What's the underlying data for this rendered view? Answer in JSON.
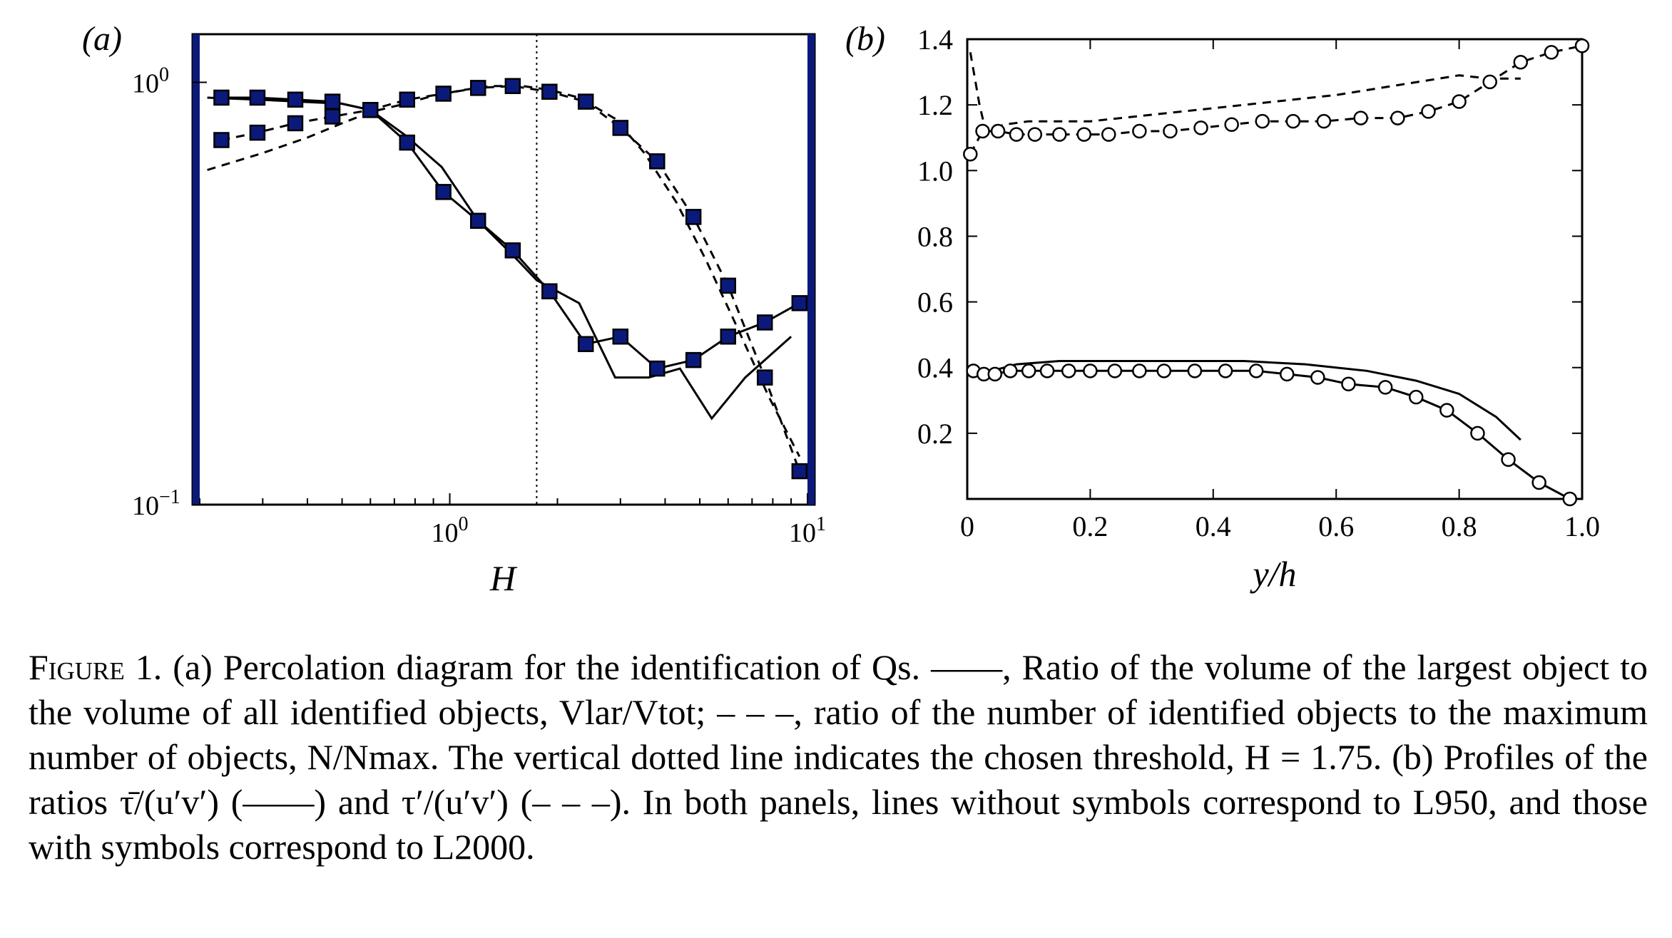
{
  "chart_data": [
    {
      "type": "line",
      "panel_label": "(a)",
      "xlabel": "H",
      "x_scale": "log",
      "y_scale": "log",
      "xlim": [
        0.2,
        10
      ],
      "ylim": [
        0.1,
        1.3
      ],
      "x_ticks": [
        {
          "value": 1,
          "base": "10",
          "exp": "0"
        },
        {
          "value": 10,
          "base": "10",
          "exp": "1"
        }
      ],
      "y_ticks": [
        {
          "value": 1,
          "base": "10",
          "exp": "0"
        },
        {
          "value": 0.1,
          "base": "10",
          "exp": "−1"
        }
      ],
      "threshold_x": 1.75,
      "series": [
        {
          "style": "solid",
          "markers": false,
          "x": [
            0.21,
            0.29,
            0.38,
            0.5,
            0.6,
            0.75,
            0.95,
            1.2,
            1.5,
            1.75,
            2.3,
            2.9,
            3.6,
            4.4,
            5.4,
            6.7,
            9.0
          ],
          "y": [
            0.92,
            0.91,
            0.9,
            0.89,
            0.86,
            0.75,
            0.63,
            0.47,
            0.39,
            0.34,
            0.3,
            0.2,
            0.2,
            0.21,
            0.16,
            0.2,
            0.25
          ]
        },
        {
          "style": "solid",
          "markers": true,
          "x": [
            0.23,
            0.29,
            0.37,
            0.47,
            0.6,
            0.76,
            0.96,
            1.2,
            1.5,
            1.9,
            2.4,
            3.0,
            3.8,
            4.8,
            6.0,
            7.6,
            9.5
          ],
          "y": [
            0.92,
            0.92,
            0.91,
            0.9,
            0.86,
            0.72,
            0.55,
            0.47,
            0.4,
            0.32,
            0.24,
            0.25,
            0.21,
            0.22,
            0.25,
            0.27,
            0.3
          ]
        },
        {
          "style": "dashed",
          "markers": false,
          "x": [
            0.21,
            0.3,
            0.4,
            0.5,
            0.6,
            0.75,
            0.9,
            1.1,
            1.3,
            1.6,
            1.9,
            2.3,
            2.9,
            3.5,
            4.3,
            5.2,
            6.4,
            7.8,
            9.5
          ],
          "y": [
            0.62,
            0.68,
            0.74,
            0.8,
            0.85,
            0.89,
            0.93,
            0.96,
            0.98,
            0.98,
            0.96,
            0.92,
            0.82,
            0.68,
            0.52,
            0.38,
            0.26,
            0.18,
            0.13
          ]
        },
        {
          "style": "dashed",
          "markers": true,
          "x": [
            0.23,
            0.29,
            0.37,
            0.47,
            0.6,
            0.76,
            0.96,
            1.2,
            1.5,
            1.9,
            2.4,
            3.0,
            3.8,
            4.8,
            6.0,
            7.6,
            9.5
          ],
          "y": [
            0.73,
            0.76,
            0.8,
            0.83,
            0.86,
            0.91,
            0.94,
            0.97,
            0.98,
            0.95,
            0.9,
            0.78,
            0.65,
            0.48,
            0.33,
            0.2,
            0.12
          ]
        }
      ]
    },
    {
      "type": "line",
      "panel_label": "(b)",
      "xlabel": "y/h",
      "xlim": [
        0,
        1.0
      ],
      "ylim": [
        0,
        1.4
      ],
      "x_ticks": [
        "0",
        "0.2",
        "0.4",
        "0.6",
        "0.8",
        "1.0"
      ],
      "y_ticks": [
        "0.2",
        "0.4",
        "0.6",
        "0.8",
        "1.0",
        "1.2",
        "1.4"
      ],
      "series": [
        {
          "style": "solid",
          "markers": false,
          "x": [
            0.01,
            0.04,
            0.08,
            0.15,
            0.25,
            0.35,
            0.45,
            0.55,
            0.65,
            0.73,
            0.8,
            0.86,
            0.9
          ],
          "y": [
            0.4,
            0.39,
            0.41,
            0.42,
            0.42,
            0.42,
            0.42,
            0.41,
            0.39,
            0.36,
            0.32,
            0.25,
            0.18
          ]
        },
        {
          "style": "solid",
          "markers": true,
          "x": [
            0.01,
            0.027,
            0.045,
            0.07,
            0.1,
            0.13,
            0.165,
            0.2,
            0.24,
            0.28,
            0.32,
            0.37,
            0.42,
            0.47,
            0.52,
            0.57,
            0.62,
            0.68,
            0.73,
            0.78,
            0.83,
            0.88,
            0.93,
            0.98
          ],
          "y": [
            0.39,
            0.38,
            0.38,
            0.39,
            0.39,
            0.39,
            0.39,
            0.39,
            0.39,
            0.39,
            0.39,
            0.39,
            0.39,
            0.39,
            0.38,
            0.37,
            0.35,
            0.34,
            0.31,
            0.27,
            0.2,
            0.12,
            0.05,
            0.0
          ]
        },
        {
          "style": "dashed",
          "markers": false,
          "x": [
            0.005,
            0.02,
            0.03,
            0.06,
            0.1,
            0.2,
            0.3,
            0.4,
            0.5,
            0.6,
            0.7,
            0.8,
            0.85,
            0.9
          ],
          "y": [
            1.36,
            1.2,
            1.12,
            1.14,
            1.15,
            1.15,
            1.17,
            1.19,
            1.21,
            1.23,
            1.26,
            1.29,
            1.28,
            1.28
          ]
        },
        {
          "style": "dashed",
          "markers": true,
          "x": [
            0.005,
            0.025,
            0.05,
            0.08,
            0.11,
            0.15,
            0.19,
            0.23,
            0.28,
            0.33,
            0.38,
            0.43,
            0.48,
            0.53,
            0.58,
            0.64,
            0.7,
            0.75,
            0.8,
            0.85,
            0.9,
            0.95,
            1.0
          ],
          "y": [
            1.05,
            1.12,
            1.12,
            1.11,
            1.11,
            1.11,
            1.11,
            1.11,
            1.12,
            1.12,
            1.13,
            1.14,
            1.15,
            1.15,
            1.15,
            1.16,
            1.16,
            1.18,
            1.21,
            1.27,
            1.33,
            1.36,
            1.38
          ]
        }
      ]
    }
  ],
  "caption": {
    "label": "Figure 1.",
    "text": "(a) Percolation diagram for the identification of Qs. ——, Ratio of the volume of the largest object to the volume of all identified objects, Vlar/Vtot; – – –, ratio of the number of identified objects to the maximum number of objects, N/Nmax. The vertical dotted line indicates the chosen threshold, H = 1.75. (b) Profiles of the ratios τ̄/(u′v′) (——) and τ′/(u′v′) (– – –). In both panels, lines without symbols correspond to L950, and those with symbols correspond to L2000."
  }
}
